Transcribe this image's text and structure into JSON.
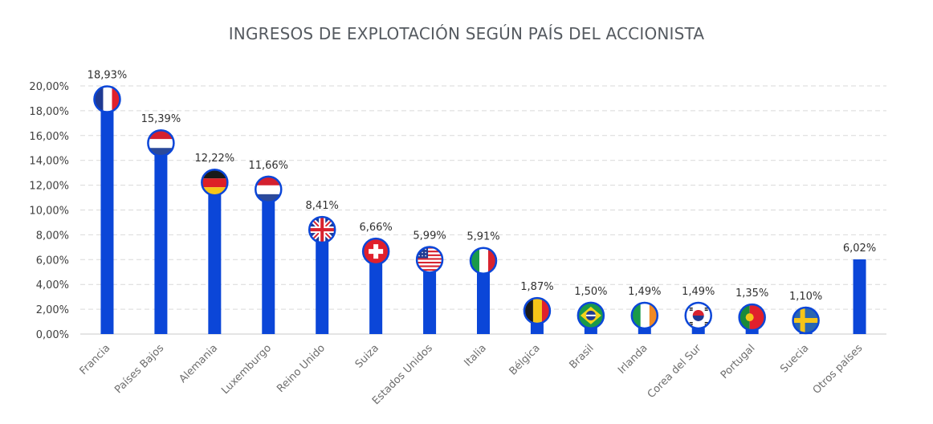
{
  "chart_data": {
    "type": "bar",
    "title": "INGRESOS DE EXPLOTACIÓN SEGÚN PAÍS DEL ACCIONISTA",
    "xlabel": "",
    "ylabel": "",
    "ylim": [
      0,
      20
    ],
    "yticks": [
      0,
      2,
      4,
      6,
      8,
      10,
      12,
      14,
      16,
      18,
      20
    ],
    "ytick_labels": [
      "0,00%",
      "2,00%",
      "4,00%",
      "6,00%",
      "8,00%",
      "10,00%",
      "12,00%",
      "14,00%",
      "16,00%",
      "18,00%",
      "20,00%"
    ],
    "grid": true,
    "bar_color": "#0b46d8",
    "categories": [
      "Francia",
      "Países Bajos",
      "Alemania",
      "Luxemburgo",
      "Reino Unido",
      "Suiza",
      "Estados Unidos",
      "Italia",
      "Bélgica",
      "Brasil",
      "Irlanda",
      "Corea del Sur",
      "Portugal",
      "Suecia",
      "Otros países"
    ],
    "values": [
      18.93,
      15.39,
      12.22,
      11.66,
      8.41,
      6.66,
      5.99,
      5.91,
      1.87,
      1.5,
      1.49,
      1.49,
      1.35,
      1.1,
      6.02
    ],
    "value_labels": [
      "18,93%",
      "15,39%",
      "12,22%",
      "11,66%",
      "8,41%",
      "6,66%",
      "5,99%",
      "5,91%",
      "1,87%",
      "1,50%",
      "1,49%",
      "1,49%",
      "1,35%",
      "1,10%",
      "6,02%"
    ],
    "flags": [
      "france-flag-icon",
      "netherlands-flag-icon",
      "germany-flag-icon",
      "netherlands-flag-icon",
      "uk-flag-icon",
      "switzerland-flag-icon",
      "usa-flag-icon",
      "italy-flag-icon",
      "belgium-flag-icon",
      "brazil-flag-icon",
      "ireland-flag-icon",
      "south-korea-flag-icon",
      "portugal-flag-icon",
      "sweden-flag-icon",
      ""
    ]
  }
}
